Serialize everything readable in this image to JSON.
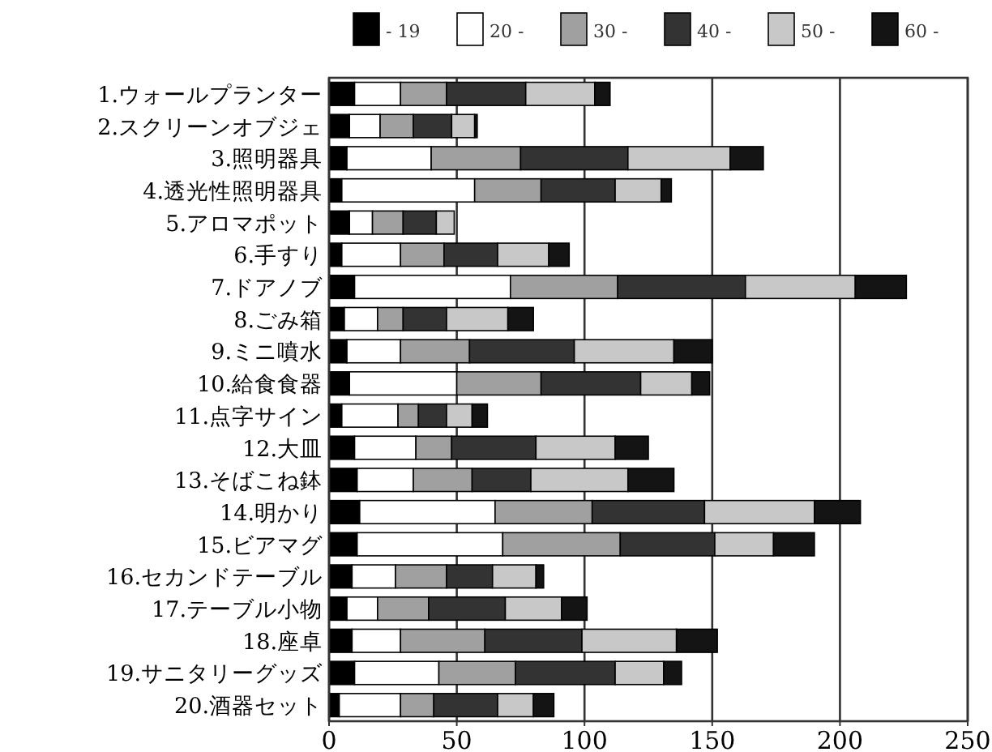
{
  "chart_data": {
    "type": "bar",
    "orientation": "horizontal",
    "stacked": true,
    "legend": "top",
    "grid": "x",
    "categories": [
      "1.ウォールプランター",
      "2.スクリーンオブジェ",
      "3.照明器具",
      "4.透光性照明器具",
      "5.アロマポット",
      "6.手すり",
      "7.ドアノブ",
      "8.ごみ箱",
      "9.ミニ噴水",
      "10.給食食器",
      "11.点字サイン",
      "12.大皿",
      "13.そばこね鉢",
      "14.明かり",
      "15.ビアマグ",
      "16.セカンドテーブル",
      "17.テーブル小物",
      "18.座卓",
      "19.サニタリーグッズ",
      "20.酒器セット"
    ],
    "xlim": [
      0,
      250
    ],
    "xticks": [
      0,
      50,
      100,
      150,
      200,
      250
    ],
    "series": [
      {
        "name": "- 19",
        "color": "#000000",
        "values": [
          10,
          8,
          7,
          5,
          8,
          5,
          10,
          6,
          7,
          8,
          5,
          10,
          11,
          12,
          11,
          9,
          7,
          9,
          10,
          4
        ]
      },
      {
        "name": "20 -",
        "color": "#ffffff",
        "values": [
          18,
          12,
          33,
          52,
          9,
          23,
          61,
          13,
          21,
          42,
          22,
          24,
          22,
          53,
          57,
          17,
          12,
          19,
          33,
          24
        ]
      },
      {
        "name": "30 -",
        "color": "#a0a0a0",
        "values": [
          18,
          13,
          35,
          26,
          12,
          17,
          42,
          10,
          27,
          33,
          8,
          14,
          23,
          38,
          46,
          20,
          20,
          33,
          30,
          13
        ]
      },
      {
        "name": "40 -",
        "color": "#333333",
        "values": [
          31,
          15,
          42,
          29,
          13,
          21,
          50,
          17,
          41,
          39,
          11,
          33,
          23,
          44,
          37,
          18,
          30,
          38,
          39,
          25
        ]
      },
      {
        "name": "50 -",
        "color": "#c8c8c8",
        "values": [
          27,
          9,
          40,
          18,
          7,
          20,
          43,
          24,
          39,
          20,
          10,
          31,
          38,
          43,
          23,
          17,
          22,
          37,
          19,
          14
        ]
      },
      {
        "name": "60 -",
        "color": "#141414",
        "values": [
          6,
          1,
          13,
          4,
          0,
          8,
          20,
          10,
          15,
          7,
          6,
          13,
          18,
          18,
          16,
          3,
          10,
          16,
          7,
          8
        ]
      }
    ]
  }
}
